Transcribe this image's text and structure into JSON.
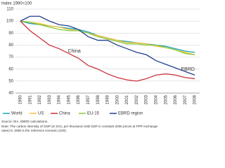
{
  "chart_data": {
    "type": "line",
    "axis_title": "Index 1990=100",
    "categories": [
      "1990",
      "1991",
      "1992",
      "1993",
      "1994",
      "1995",
      "1996",
      "1997",
      "1998",
      "1999",
      "2000",
      "2001",
      "2002",
      "2003",
      "2004",
      "2005",
      "2006",
      "2007",
      "2008"
    ],
    "series": [
      {
        "name": "World",
        "color": "#1aa3b8",
        "values": [
          100,
          98,
          97,
          96,
          95,
          94,
          93,
          91,
          88,
          86,
          84,
          83,
          82,
          81,
          80,
          79,
          77,
          75,
          74
        ]
      },
      {
        "name": "US",
        "color": "#f2c12e",
        "values": [
          100,
          99,
          98,
          96,
          95,
          93,
          92,
          90,
          88,
          86,
          84,
          82,
          82,
          81,
          79,
          78,
          76,
          74,
          72
        ]
      },
      {
        "name": "China",
        "color": "#c8333a",
        "values": [
          100,
          92,
          86,
          80,
          77,
          73,
          69,
          63,
          60,
          56,
          53,
          51,
          50,
          52,
          55,
          56,
          55,
          53,
          52
        ]
      },
      {
        "name": "EU-15",
        "color": "#8cc63f",
        "values": [
          100,
          99,
          97,
          95,
          93,
          92,
          92,
          90,
          87,
          85,
          83,
          81,
          81,
          80,
          80,
          78,
          76,
          73,
          72
        ]
      },
      {
        "name": "EBRD region",
        "color": "#1f3f8c",
        "values": [
          100,
          104,
          104,
          100,
          97,
          96,
          93,
          87,
          84,
          84,
          80,
          77,
          74,
          72,
          67,
          64,
          61,
          58,
          55
        ]
      }
    ],
    "annotations": [
      {
        "text": "China",
        "series": 2
      },
      {
        "text": "EBRD",
        "series": 4
      }
    ],
    "ylim": [
      40,
      110
    ],
    "yticks": [
      40,
      50,
      60,
      70,
      80,
      90,
      100,
      110
    ],
    "grid": true,
    "source": "Source: IEA, EBRD calculations.",
    "note": [
      "Note: The carbon intensity of GDP (in tCO₂ per thousand US$ GDP in constant 2000 prices at PPP exchange",
      "rates) in 1990 is the reference scenario (100)."
    ]
  }
}
